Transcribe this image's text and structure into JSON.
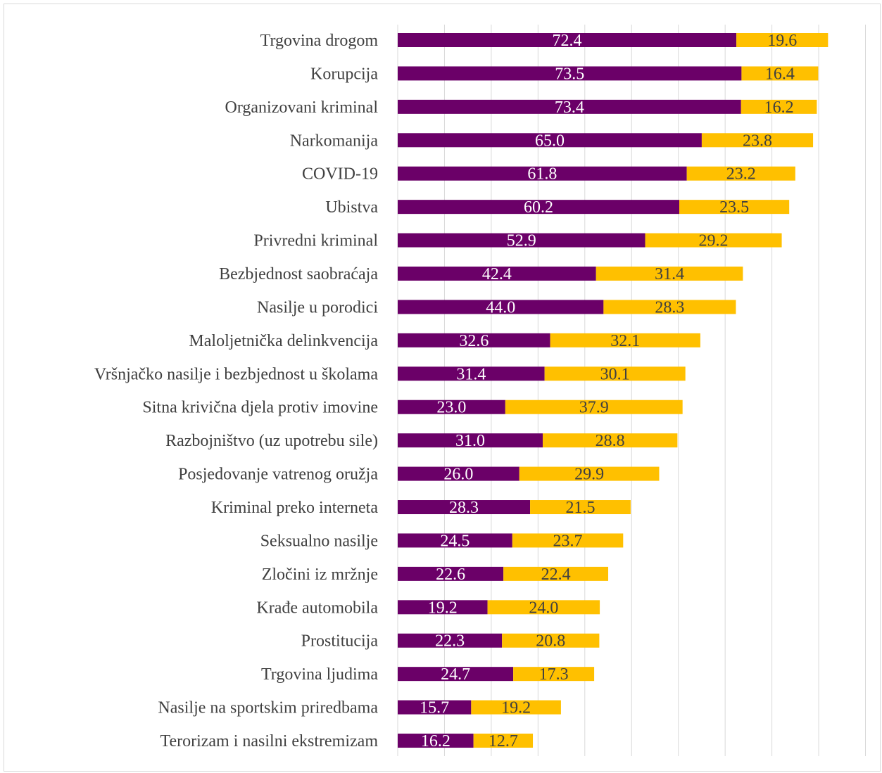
{
  "chart_data": {
    "type": "bar",
    "orientation": "horizontal",
    "stacked": true,
    "categories": [
      "Trgovina drogom",
      "Korupcija",
      "Organizovani kriminal",
      "Narkomanija",
      "COVID-19",
      "Ubistva",
      "Privredni kriminal",
      "Bezbjednost saobraćaja",
      "Nasilje u porodici",
      "Maloljetnička delinkvencija",
      "Vršnjačko nasilje i bezbjednost u školama",
      "Sitna krivična djela protiv imovine",
      "Razbojništvo (uz upotrebu sile)",
      "Posjedovanje vatrenog oružja",
      "Kriminal preko interneta",
      "Seksualno nasilje",
      "Zločini iz mržnje",
      "Krađe automobila",
      "Prostitucija",
      "Trgovina ljudima",
      "Nasilje na sportskim priredbama",
      "Terorizam i nasilni ekstremizam"
    ],
    "series": [
      {
        "color": "#6b0068",
        "values": [
          72.4,
          73.5,
          73.4,
          65.0,
          61.8,
          60.2,
          52.9,
          42.4,
          44.0,
          32.6,
          31.4,
          23.0,
          31.0,
          26.0,
          28.3,
          24.5,
          22.6,
          19.2,
          22.3,
          24.7,
          15.7,
          16.2
        ],
        "labels": [
          "72.4",
          "73.5",
          "73.4",
          "65.0",
          "61.8",
          "60.2",
          "52.9",
          "42.4",
          "44.0",
          "32.6",
          "31.4",
          "23.0",
          "31.0",
          "26.0",
          "28.3",
          "24.5",
          "22.6",
          "19.2",
          "22.3",
          "24.7",
          "15.7",
          "16.2"
        ]
      },
      {
        "color": "#ffc000",
        "values": [
          19.6,
          16.4,
          16.2,
          23.8,
          23.2,
          23.5,
          29.2,
          31.4,
          28.3,
          32.1,
          30.1,
          37.9,
          28.8,
          29.9,
          21.5,
          23.7,
          22.4,
          24.0,
          20.8,
          17.3,
          19.2,
          12.7
        ],
        "labels": [
          "19.6",
          "16.4",
          "16.2",
          "23.8",
          "23.2",
          "23.5",
          "29.2",
          "31.4",
          "28.3",
          "32.1",
          "30.1",
          "37.9",
          "28.8",
          "29.9",
          "21.5",
          "23.7",
          "22.4",
          "24.0",
          "20.8",
          "17.3",
          "19.2",
          "12.7"
        ]
      }
    ],
    "xlim": [
      0,
      100
    ],
    "grid": true,
    "legend": "none",
    "title": "",
    "xlabel": "",
    "ylabel": ""
  }
}
